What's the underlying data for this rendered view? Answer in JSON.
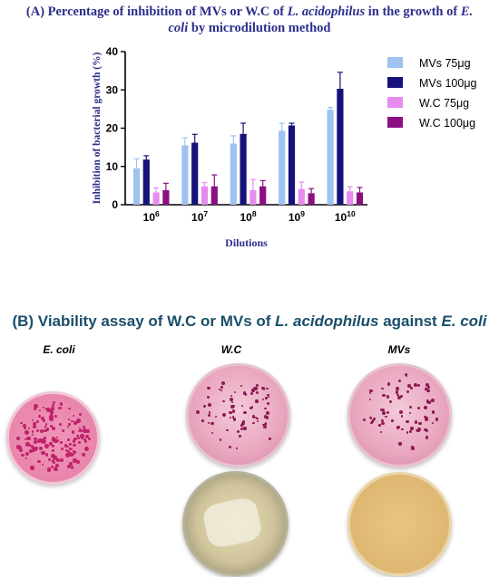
{
  "panel_a": {
    "title_prefix": "(A) Percentage of inhibition of MVs or W.C of ",
    "title_species": "L. acidophilus",
    "title_mid": " in the growth of ",
    "title_species2": "E. coli",
    "title_suffix": " by microdilution method"
  },
  "chart_data": {
    "type": "bar",
    "title": "(A) Percentage of inhibition of MVs or W.C of L. acidophilus in the growth of E. coli by microdilution method",
    "xlabel": "Dilutions",
    "ylabel": "Inhibition of bacterial growth (%)",
    "categories": [
      "10^6",
      "10^7",
      "10^8",
      "10^9",
      "10^10"
    ],
    "category_base": "10",
    "category_exponents": [
      "6",
      "7",
      "8",
      "9",
      "10"
    ],
    "ylim": [
      0,
      40
    ],
    "yticks": [
      "0",
      "10",
      "20",
      "30",
      "40"
    ],
    "legend_position": "right",
    "grid": false,
    "series": [
      {
        "name": "MVs 75μg",
        "color": "#9ec3f0",
        "values": [
          9.5,
          15.5,
          16.0,
          19.3,
          24.8
        ],
        "errors": [
          2.5,
          2.0,
          2.0,
          2.0,
          0.6
        ]
      },
      {
        "name": "MVs 100μg",
        "color": "#15137a",
        "values": [
          11.8,
          16.2,
          18.5,
          20.7,
          30.3
        ],
        "errors": [
          1.0,
          2.2,
          2.8,
          0.6,
          4.3
        ]
      },
      {
        "name": "W.C 75μg",
        "color": "#e58cee",
        "values": [
          3.2,
          4.8,
          3.8,
          4.1,
          3.5
        ],
        "errors": [
          1.2,
          1.0,
          2.8,
          1.8,
          1.2
        ]
      },
      {
        "name": "W.C 100μg",
        "color": "#8b0f82",
        "values": [
          3.8,
          4.8,
          4.8,
          3.0,
          3.2
        ],
        "errors": [
          1.8,
          3.0,
          1.5,
          1.2,
          1.3
        ]
      }
    ]
  },
  "panel_b": {
    "title_prefix": "(B) Viability assay of W.C or MVs of ",
    "title_species": "L. acidophilus",
    "title_mid": " against ",
    "title_species2": "E. coli",
    "labels": {
      "ecoli": "E. coli",
      "wc": "W.C",
      "mvs": "MVs"
    }
  }
}
